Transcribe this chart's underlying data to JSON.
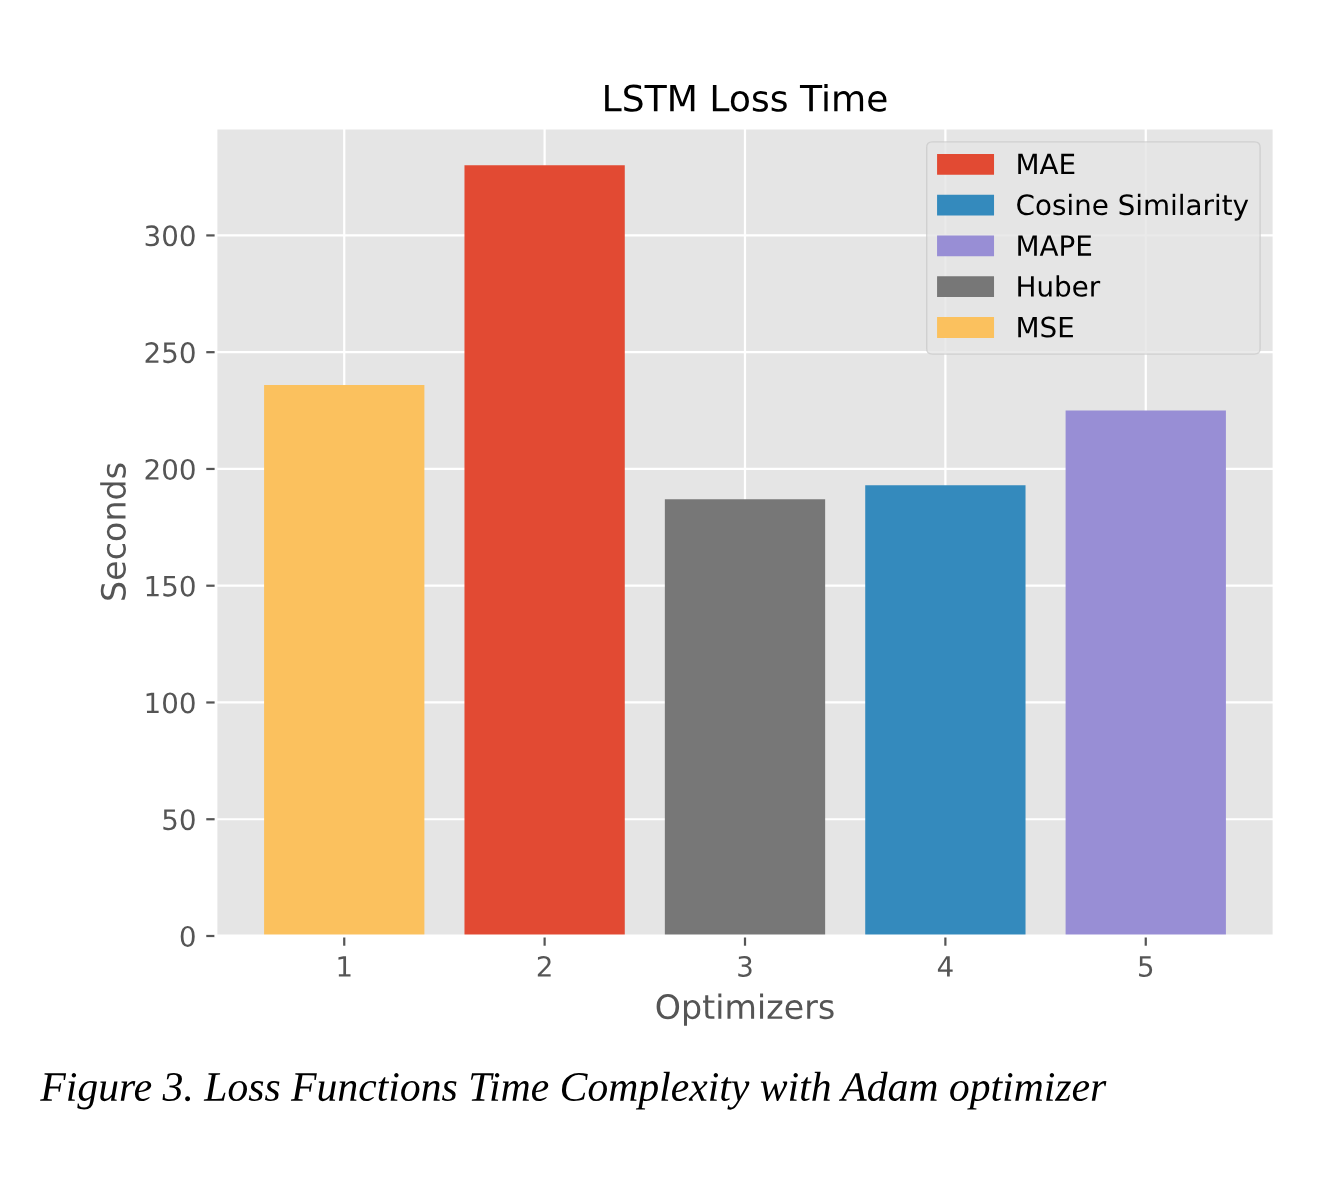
{
  "chart_data": {
    "type": "bar",
    "title": "LSTM Loss Time",
    "xlabel": "Optimizers",
    "ylabel": "Seconds",
    "categories": [
      "1",
      "2",
      "3",
      "4",
      "5"
    ],
    "series": [
      {
        "name": "MAE",
        "color": "#e24a33",
        "values": [
          null,
          330,
          null,
          null,
          null
        ]
      },
      {
        "name": "Cosine Similarity",
        "color": "#348abd",
        "values": [
          null,
          null,
          null,
          193,
          null
        ]
      },
      {
        "name": "MAPE",
        "color": "#988ed5",
        "values": [
          null,
          null,
          null,
          null,
          225
        ]
      },
      {
        "name": "Huber",
        "color": "#777777",
        "values": [
          null,
          null,
          187,
          null,
          null
        ]
      },
      {
        "name": "MSE",
        "color": "#fbc15e",
        "values": [
          236,
          null,
          null,
          null,
          null
        ]
      }
    ],
    "ylim": [
      0,
      346
    ],
    "yticks": [
      0,
      50,
      100,
      150,
      200,
      250,
      300
    ],
    "grid": true,
    "legend": "top right",
    "annotations": [
      "Figure 3. Loss Functions Time Complexity with Adam optimizer"
    ]
  }
}
